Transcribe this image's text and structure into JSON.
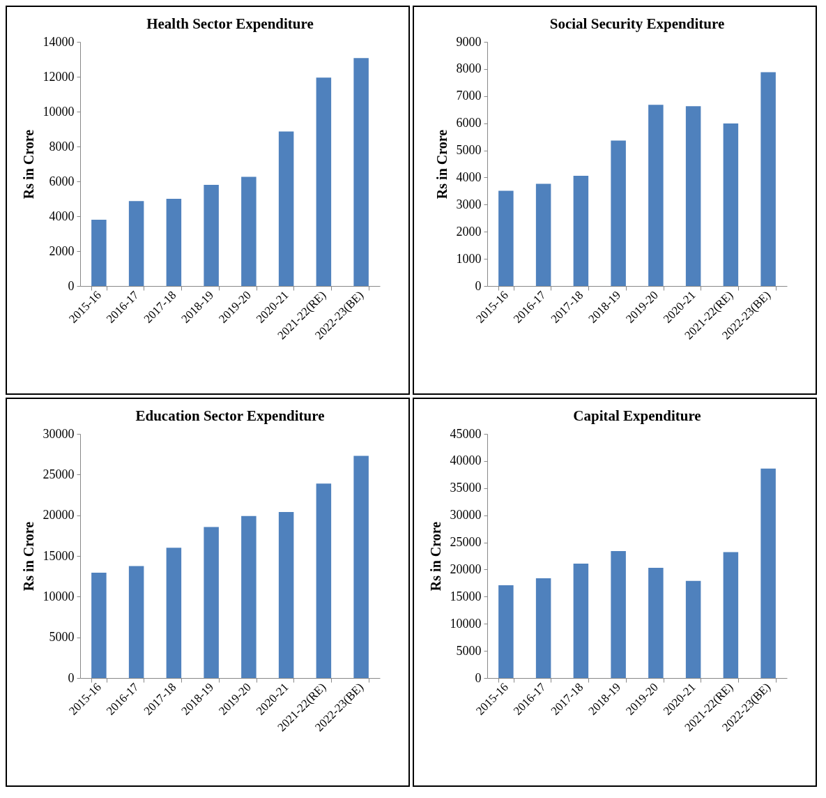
{
  "chart_data": [
    {
      "type": "bar",
      "title": "Health Sector Expenditure",
      "ylabel": "Rs in Crore",
      "categories": [
        "2015-16",
        "2016-17",
        "2017-18",
        "2018-19",
        "2019-20",
        "2020-21",
        "2021-22(RE)",
        "2022-23(BE)"
      ],
      "color": "#4f81bd",
      "values": [
        3800,
        4870,
        5000,
        5800,
        6260,
        8860,
        11950,
        13070
      ],
      "ylim": [
        0,
        14000
      ],
      "yticks": [
        0,
        2000,
        4000,
        6000,
        8000,
        10000,
        12000,
        14000
      ]
    },
    {
      "type": "bar",
      "title": "Social Security Expenditure",
      "ylabel": "Rs in Crore",
      "categories": [
        "2015-16",
        "2016-17",
        "2017-18",
        "2018-19",
        "2019-20",
        "2020-21",
        "2021-22(RE)",
        "2022-23(BE)"
      ],
      "color": "#4f81bd",
      "values": [
        3510,
        3770,
        4060,
        5360,
        6680,
        6630,
        5990,
        7880
      ],
      "ylim": [
        0,
        9000
      ],
      "yticks": [
        0,
        1000,
        2000,
        3000,
        4000,
        5000,
        6000,
        7000,
        8000,
        9000
      ]
    },
    {
      "type": "bar",
      "title": "Education Sector Expenditure",
      "ylabel": "Rs in Crore",
      "categories": [
        "2015-16",
        "2016-17",
        "2017-18",
        "2018-19",
        "2019-20",
        "2020-21",
        "2021-22(RE)",
        "2022-23(BE)"
      ],
      "color": "#4f81bd",
      "values": [
        12950,
        13750,
        16000,
        18550,
        19900,
        20400,
        23900,
        27300
      ],
      "ylim": [
        0,
        30000
      ],
      "yticks": [
        0,
        5000,
        10000,
        15000,
        20000,
        25000,
        30000
      ]
    },
    {
      "type": "bar",
      "title": "Capital Expenditure",
      "ylabel": "Rs in Crore",
      "categories": [
        "2015-16",
        "2016-17",
        "2017-18",
        "2018-19",
        "2019-20",
        "2020-21",
        "2021-22(RE)",
        "2022-23(BE)"
      ],
      "color": "#4f81bd",
      "values": [
        17100,
        18400,
        21100,
        23400,
        20300,
        17900,
        23200,
        38600
      ],
      "ylim": [
        0,
        45000
      ],
      "yticks": [
        0,
        5000,
        10000,
        15000,
        20000,
        25000,
        30000,
        35000,
        40000,
        45000
      ]
    }
  ]
}
